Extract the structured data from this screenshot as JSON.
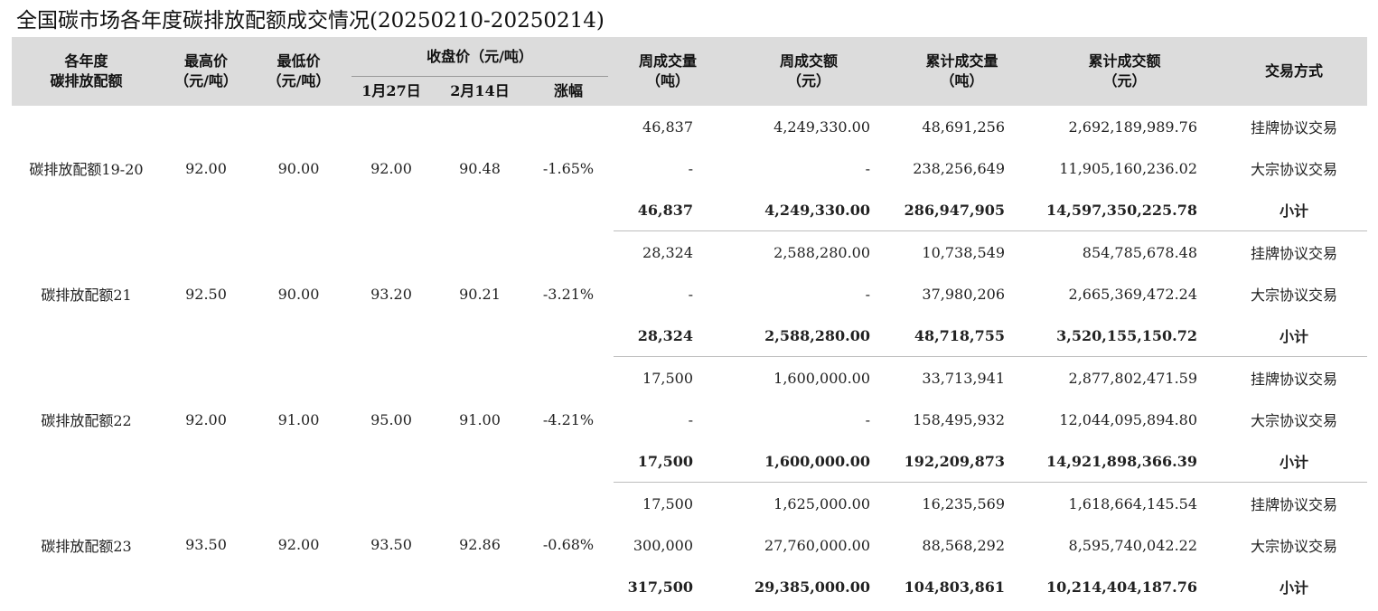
{
  "title": "全国碳市场各年度碳排放配额成交情况(20250210-20250214)",
  "headers": {
    "year": [
      "各年度",
      "碳排放配额"
    ],
    "high": [
      "最高价",
      "（元/吨）"
    ],
    "low": [
      "最低价",
      "（元/吨）"
    ],
    "close_group": "收盘价（元/吨）",
    "close_start": "1月27日",
    "close_end": "2月14日",
    "change": "涨幅",
    "week_vol": [
      "周成交量",
      "（吨）"
    ],
    "week_amt": [
      "周成交额",
      "（元）"
    ],
    "cum_vol": [
      "累计成交量",
      "（吨）"
    ],
    "cum_amt": [
      "累计成交额",
      "（元）"
    ],
    "method": "交易方式"
  },
  "groups": [
    {
      "name": "碳排放配额19-20",
      "high": "92.00",
      "low": "90.00",
      "close_start": "92.00",
      "close_end": "90.48",
      "change": "-1.65%",
      "rows": [
        {
          "week_vol": "46,837",
          "week_amt": "4,249,330.00",
          "cum_vol": "48,691,256",
          "cum_amt": "2,692,189,989.76",
          "method": "挂牌协议交易"
        },
        {
          "week_vol": "-",
          "week_amt": "-",
          "cum_vol": "238,256,649",
          "cum_amt": "11,905,160,236.02",
          "method": "大宗协议交易"
        },
        {
          "week_vol": "46,837",
          "week_amt": "4,249,330.00",
          "cum_vol": "286,947,905",
          "cum_amt": "14,597,350,225.78",
          "method": "小计"
        }
      ]
    },
    {
      "name": "碳排放配额21",
      "high": "92.50",
      "low": "90.00",
      "close_start": "93.20",
      "close_end": "90.21",
      "change": "-3.21%",
      "rows": [
        {
          "week_vol": "28,324",
          "week_amt": "2,588,280.00",
          "cum_vol": "10,738,549",
          "cum_amt": "854,785,678.48",
          "method": "挂牌协议交易"
        },
        {
          "week_vol": "-",
          "week_amt": "-",
          "cum_vol": "37,980,206",
          "cum_amt": "2,665,369,472.24",
          "method": "大宗协议交易"
        },
        {
          "week_vol": "28,324",
          "week_amt": "2,588,280.00",
          "cum_vol": "48,718,755",
          "cum_amt": "3,520,155,150.72",
          "method": "小计"
        }
      ]
    },
    {
      "name": "碳排放配额22",
      "high": "92.00",
      "low": "91.00",
      "close_start": "95.00",
      "close_end": "91.00",
      "change": "-4.21%",
      "rows": [
        {
          "week_vol": "17,500",
          "week_amt": "1,600,000.00",
          "cum_vol": "33,713,941",
          "cum_amt": "2,877,802,471.59",
          "method": "挂牌协议交易"
        },
        {
          "week_vol": "-",
          "week_amt": "-",
          "cum_vol": "158,495,932",
          "cum_amt": "12,044,095,894.80",
          "method": "大宗协议交易"
        },
        {
          "week_vol": "17,500",
          "week_amt": "1,600,000.00",
          "cum_vol": "192,209,873",
          "cum_amt": "14,921,898,366.39",
          "method": "小计"
        }
      ]
    },
    {
      "name": "碳排放配额23",
      "high": "93.50",
      "low": "92.00",
      "close_start": "93.50",
      "close_end": "92.86",
      "change": "-0.68%",
      "rows": [
        {
          "week_vol": "17,500",
          "week_amt": "1,625,000.00",
          "cum_vol": "16,235,569",
          "cum_amt": "1,618,664,145.54",
          "method": "挂牌协议交易"
        },
        {
          "week_vol": "300,000",
          "week_amt": "27,760,000.00",
          "cum_vol": "88,568,292",
          "cum_amt": "8,595,740,042.22",
          "method": "大宗协议交易"
        },
        {
          "week_vol": "317,500",
          "week_amt": "29,385,000.00",
          "cum_vol": "104,803,861",
          "cum_amt": "10,214,404,187.76",
          "method": "小计"
        }
      ]
    }
  ]
}
